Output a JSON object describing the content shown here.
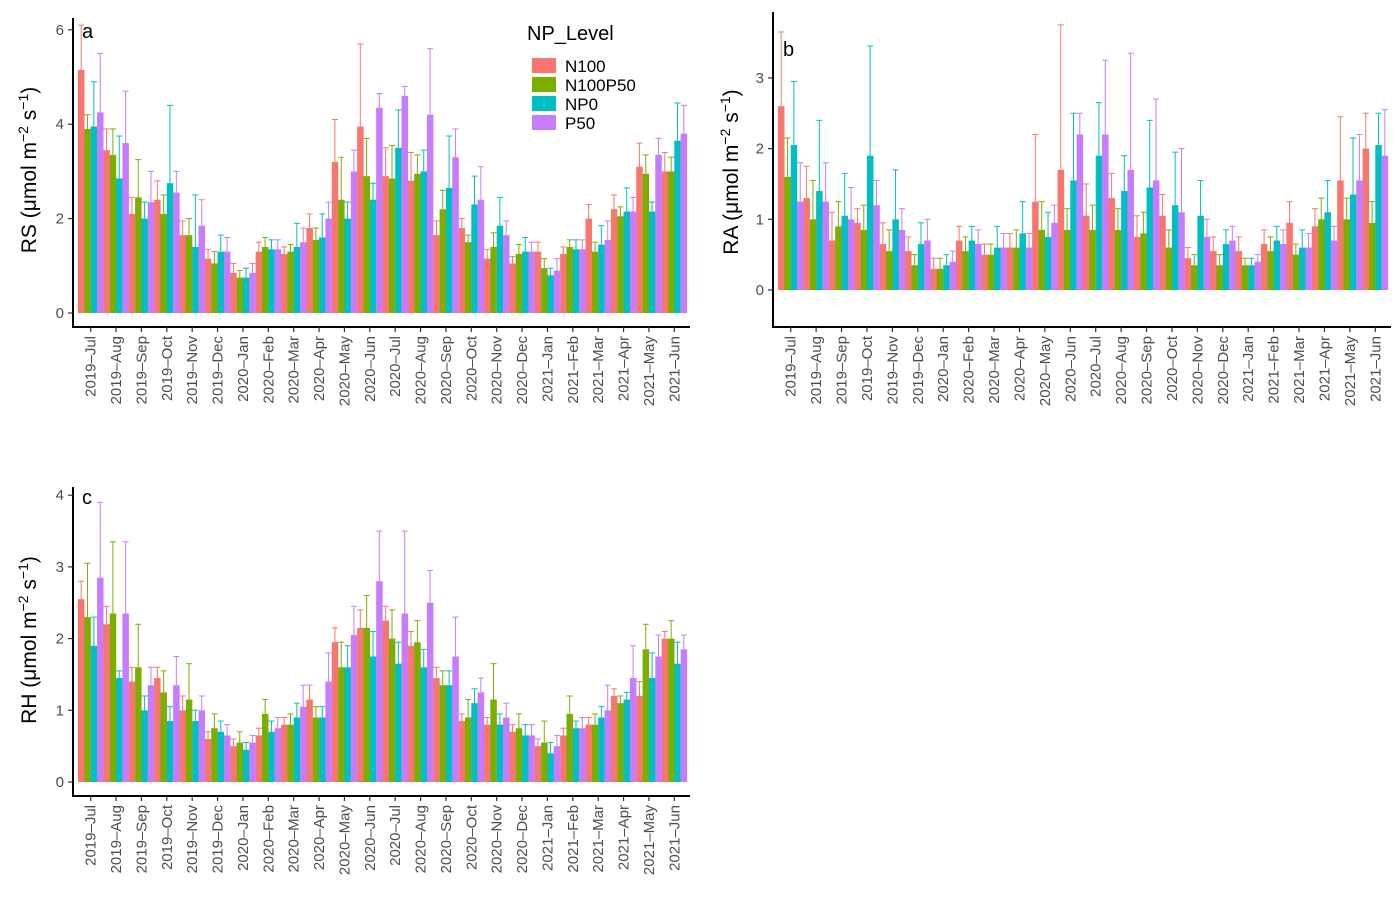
{
  "chart_data": {
    "type": "bar",
    "categories": [
      "2019–Jul",
      "2019–Aug",
      "2019–Sep",
      "2019–Oct",
      "2019–Nov",
      "2019–Dec",
      "2020–Jan",
      "2020–Feb",
      "2020–Mar",
      "2020–Apr",
      "2020–May",
      "2020–Jun",
      "2020–Jul",
      "2020–Aug",
      "2020–Sep",
      "2020–Oct",
      "2020–Nov",
      "2020–Dec",
      "2021–Jan",
      "2021–Feb",
      "2021–Mar",
      "2021–Apr",
      "2021–May",
      "2021–Jun"
    ],
    "legend": {
      "title": "NP_Level",
      "position": "top-right of panel a",
      "entries": [
        {
          "name": "N100",
          "color": "#F8766D"
        },
        {
          "name": "N100P50",
          "color": "#7CAE00"
        },
        {
          "name": "NP0",
          "color": "#00BFC4"
        },
        {
          "name": "P50",
          "color": "#C77CFF"
        }
      ]
    },
    "panels": [
      {
        "tag": "a",
        "ylabel_main": "RS (μmol m",
        "ylabel_exp1": "−2",
        "ylabel_mid": " s",
        "ylabel_exp2": "−1",
        "ylabel_end": ")",
        "ylim": [
          0,
          6
        ],
        "yticks": [
          0,
          2,
          4,
          6
        ],
        "series": [
          {
            "name": "N100",
            "values": [
              5.15,
              3.45,
              2.1,
              2.4,
              1.65,
              1.15,
              0.85,
              1.3,
              1.25,
              1.8,
              3.2,
              3.95,
              2.9,
              2.8,
              1.65,
              1.8,
              1.15,
              1.05,
              1.3,
              1.25,
              2.0,
              2.2,
              3.1,
              3.0
            ],
            "errors": [
              0.95,
              0.45,
              0.35,
              0.4,
              0.3,
              0.2,
              0.2,
              0.2,
              0.15,
              0.3,
              0.9,
              1.75,
              0.6,
              0.6,
              0.3,
              0.2,
              0.2,
              0.15,
              0.2,
              0.15,
              0.3,
              0.3,
              0.5,
              0.4
            ]
          },
          {
            "name": "N100P50",
            "values": [
              3.9,
              3.35,
              2.45,
              2.1,
              1.65,
              1.05,
              0.75,
              1.4,
              1.3,
              1.55,
              2.4,
              2.9,
              2.85,
              2.95,
              2.2,
              1.5,
              1.4,
              1.25,
              0.95,
              1.4,
              1.3,
              2.05,
              2.95,
              3.0
            ],
            "errors": [
              0.3,
              0.55,
              0.8,
              0.4,
              0.35,
              0.25,
              0.15,
              0.2,
              0.15,
              0.25,
              0.9,
              0.8,
              0.7,
              0.4,
              0.4,
              0.15,
              0.3,
              0.2,
              0.2,
              0.15,
              0.2,
              0.2,
              0.4,
              0.3
            ],
            "note": ""
          },
          {
            "name": "NP0",
            "values": [
              3.95,
              2.85,
              2.0,
              2.75,
              1.4,
              1.3,
              0.75,
              1.35,
              1.4,
              1.6,
              2.0,
              2.4,
              3.5,
              3.0,
              2.65,
              2.3,
              1.85,
              1.3,
              0.8,
              1.35,
              1.45,
              2.15,
              2.15,
              3.65
            ],
            "errors": [
              0.95,
              0.9,
              0.35,
              1.65,
              1.1,
              0.35,
              0.2,
              0.2,
              0.5,
              0.5,
              0.35,
              0.35,
              0.8,
              0.45,
              1.1,
              0.6,
              0.6,
              0.3,
              0.15,
              0.2,
              0.4,
              0.5,
              0.2,
              0.8
            ]
          },
          {
            "name": "P50",
            "values": [
              4.25,
              3.6,
              2.35,
              2.55,
              1.85,
              1.3,
              0.85,
              1.35,
              1.5,
              2.0,
              3.0,
              4.35,
              4.6,
              4.2,
              3.3,
              2.4,
              1.65,
              1.3,
              0.9,
              1.35,
              1.55,
              2.15,
              3.35,
              3.8
            ],
            "errors": [
              1.25,
              1.1,
              0.65,
              0.45,
              0.55,
              0.3,
              0.2,
              0.2,
              0.3,
              0.35,
              0.45,
              0.3,
              0.2,
              1.4,
              0.6,
              0.7,
              0.3,
              0.2,
              0.25,
              0.2,
              0.4,
              0.3,
              0.35,
              0.6
            ]
          }
        ]
      },
      {
        "tag": "b",
        "ylabel_main": "RA (μmol m",
        "ylabel_exp1": "−2",
        "ylabel_mid": " s",
        "ylabel_exp2": "−1",
        "ylabel_end": ")",
        "ylim": [
          -0.5,
          3.9
        ],
        "yticks": [
          0,
          1,
          2,
          3
        ],
        "series": [
          {
            "name": "N100",
            "values": [
              2.6,
              1.3,
              0.7,
              0.95,
              0.65,
              0.55,
              0.3,
              0.7,
              0.5,
              0.6,
              1.25,
              1.7,
              1.05,
              1.3,
              0.75,
              1.05,
              0.45,
              0.55,
              0.55,
              0.65,
              0.95,
              0.9,
              1.55,
              2.0
            ],
            "errors": [
              1.05,
              0.45,
              0.4,
              0.2,
              0.3,
              0.2,
              0.15,
              0.2,
              0.15,
              0.2,
              0.95,
              2.05,
              0.45,
              0.35,
              0.3,
              0.3,
              0.15,
              0.2,
              0.2,
              0.2,
              0.3,
              0.25,
              0.9,
              0.5
            ]
          },
          {
            "name": "N100P50",
            "values": [
              1.6,
              1.0,
              0.9,
              0.85,
              0.55,
              0.35,
              0.3,
              0.55,
              0.5,
              0.6,
              0.85,
              0.85,
              0.85,
              0.85,
              0.8,
              0.6,
              0.35,
              0.35,
              0.35,
              0.55,
              0.5,
              1.0,
              1.0,
              0.95
            ],
            "errors": [
              0.55,
              0.55,
              0.35,
              0.35,
              0.3,
              0.15,
              0.15,
              0.2,
              0.15,
              0.25,
              0.4,
              0.3,
              0.35,
              0.3,
              0.3,
              0.25,
              0.15,
              0.15,
              0.1,
              0.2,
              0.15,
              0.3,
              0.3,
              0.3
            ]
          },
          {
            "name": "NP0",
            "values": [
              2.05,
              1.4,
              1.05,
              1.9,
              1.0,
              0.65,
              0.35,
              0.7,
              0.6,
              0.8,
              0.75,
              1.55,
              1.9,
              1.4,
              1.45,
              1.2,
              1.05,
              0.65,
              0.35,
              0.7,
              0.6,
              1.1,
              1.35,
              2.05
            ],
            "errors": [
              0.9,
              1.0,
              0.6,
              1.55,
              0.7,
              0.3,
              0.15,
              0.2,
              0.3,
              0.45,
              0.35,
              0.95,
              0.75,
              0.5,
              0.95,
              0.75,
              0.5,
              0.2,
              0.1,
              0.2,
              0.25,
              0.45,
              0.8,
              0.45
            ]
          },
          {
            "name": "P50",
            "values": [
              1.25,
              1.25,
              1.0,
              1.2,
              0.85,
              0.7,
              0.4,
              0.65,
              0.6,
              0.6,
              0.95,
              2.2,
              2.2,
              1.7,
              1.55,
              1.1,
              0.75,
              0.7,
              0.4,
              0.65,
              0.6,
              0.7,
              1.55,
              1.9
            ],
            "errors": [
              0.55,
              0.55,
              0.45,
              0.35,
              0.3,
              0.3,
              0.15,
              0.2,
              0.2,
              0.2,
              0.25,
              0.3,
              1.05,
              1.65,
              1.15,
              0.9,
              0.25,
              0.2,
              0.1,
              0.2,
              0.2,
              0.2,
              0.65,
              0.65
            ]
          }
        ]
      },
      {
        "tag": "c",
        "ylabel_main": "RH (μmol m",
        "ylabel_exp1": "−2",
        "ylabel_mid": " s",
        "ylabel_exp2": "−1",
        "ylabel_end": ")",
        "ylim": [
          0,
          4
        ],
        "yticks": [
          0,
          1,
          2,
          3,
          4
        ],
        "series": [
          {
            "name": "N100",
            "values": [
              2.55,
              2.2,
              1.4,
              1.45,
              1.0,
              0.6,
              0.5,
              0.65,
              0.8,
              1.15,
              1.95,
              2.15,
              2.25,
              1.9,
              1.45,
              0.85,
              0.8,
              0.7,
              0.5,
              0.65,
              0.8,
              1.2,
              1.2,
              2.0
            ],
            "errors": [
              0.25,
              0.25,
              0.2,
              0.15,
              0.2,
              0.1,
              0.1,
              0.1,
              0.1,
              0.2,
              0.2,
              0.25,
              0.2,
              0.2,
              0.15,
              0.1,
              0.1,
              0.1,
              0.1,
              0.1,
              0.1,
              0.1,
              0.2,
              0.1
            ]
          },
          {
            "name": "N100P50",
            "values": [
              2.3,
              2.35,
              1.6,
              1.25,
              1.15,
              0.75,
              0.55,
              0.95,
              0.8,
              0.9,
              1.6,
              2.15,
              2.0,
              1.95,
              1.35,
              0.9,
              1.15,
              0.75,
              0.55,
              0.95,
              0.8,
              1.1,
              1.85,
              2.0
            ],
            "errors": [
              0.75,
              1.0,
              0.6,
              0.3,
              0.5,
              0.2,
              0.15,
              0.2,
              0.15,
              0.15,
              0.35,
              0.45,
              0.4,
              0.3,
              0.2,
              0.25,
              0.5,
              0.2,
              0.3,
              0.25,
              0.15,
              0.1,
              0.35,
              0.25
            ]
          },
          {
            "name": "NP0",
            "values": [
              1.9,
              1.45,
              1.0,
              0.85,
              0.85,
              0.7,
              0.45,
              0.7,
              0.9,
              0.9,
              1.6,
              1.75,
              1.65,
              1.6,
              1.35,
              1.1,
              0.8,
              0.65,
              0.4,
              0.75,
              0.9,
              1.15,
              1.45,
              1.65
            ],
            "errors": [
              0.4,
              0.1,
              0.2,
              0.2,
              0.15,
              0.15,
              0.1,
              0.15,
              0.2,
              0.15,
              0.3,
              0.35,
              0.3,
              0.25,
              0.2,
              0.2,
              0.15,
              0.15,
              0.15,
              0.1,
              0.15,
              0.1,
              0.35,
              0.3
            ]
          },
          {
            "name": "P50",
            "values": [
              2.85,
              2.35,
              1.35,
              1.35,
              1.0,
              0.65,
              0.55,
              0.75,
              1.05,
              1.4,
              2.05,
              2.8,
              2.35,
              2.5,
              1.75,
              1.25,
              0.9,
              0.65,
              0.5,
              0.75,
              1.0,
              1.45,
              1.75,
              1.85
            ],
            "errors": [
              1.05,
              1.0,
              0.25,
              0.4,
              0.2,
              0.15,
              0.1,
              0.15,
              0.3,
              0.4,
              0.4,
              0.7,
              1.15,
              0.45,
              0.55,
              0.2,
              0.2,
              0.15,
              0.15,
              0.15,
              0.35,
              0.45,
              0.3,
              0.2
            ]
          }
        ]
      }
    ]
  }
}
